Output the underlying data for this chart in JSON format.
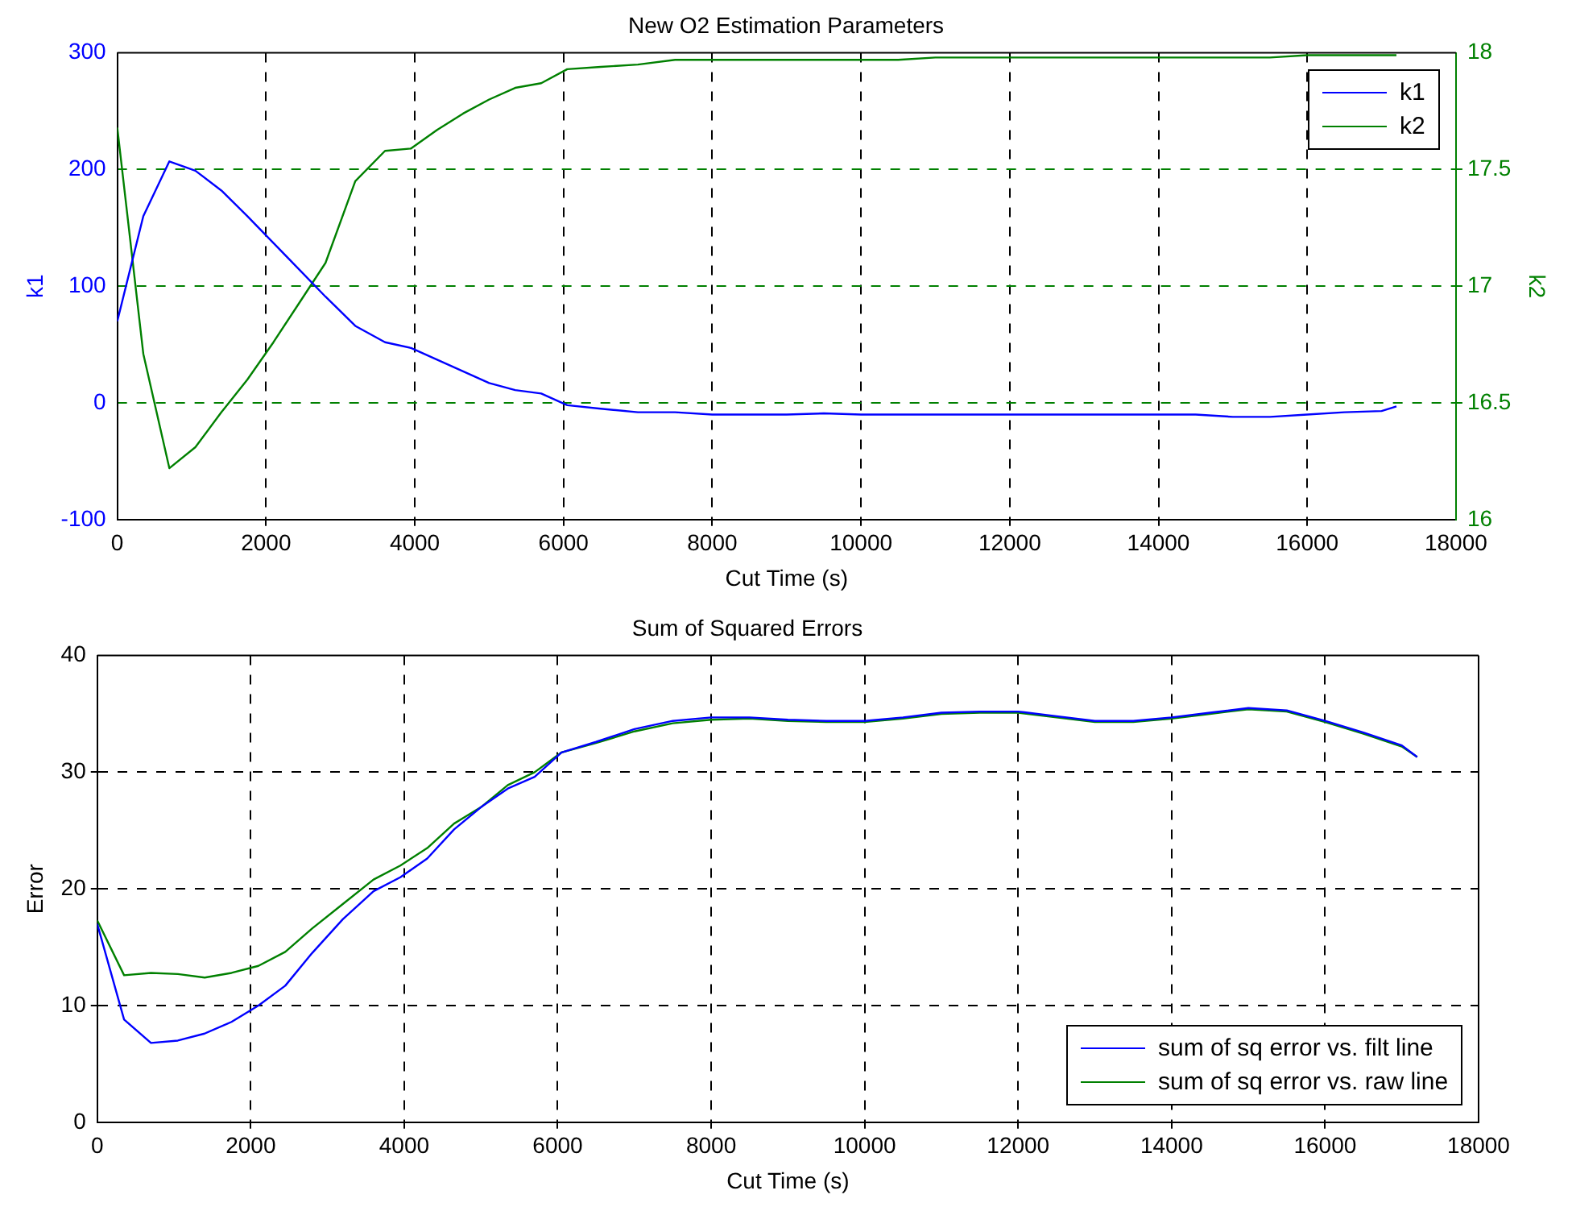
{
  "chart_data": [
    {
      "type": "line",
      "title": "New O2 Estimation Parameters",
      "xlabel": "Cut Time (s)",
      "ylabel": "k1",
      "y2label": "k2",
      "x": [
        0,
        350,
        700,
        1050,
        1400,
        1750,
        2100,
        2450,
        2800,
        3200,
        3600,
        3950,
        4300,
        4650,
        5000,
        5350,
        5700,
        6050,
        6500,
        7000,
        7500,
        8000,
        8500,
        9000,
        9500,
        10000,
        10500,
        11000,
        11500,
        12000,
        12500,
        13000,
        13500,
        14000,
        14500,
        15000,
        15500,
        16000,
        16500,
        17000,
        17200
      ],
      "series": [
        {
          "name": "k1",
          "color": "#0000ff",
          "values": [
            70,
            160,
            207,
            199,
            182,
            160,
            137,
            114,
            91,
            66,
            52,
            47,
            37,
            27,
            17,
            11,
            8,
            -2,
            -5,
            -8,
            -8,
            -10,
            -10,
            -10,
            -9,
            -10,
            -10,
            -10,
            -10,
            -10,
            -10,
            -10,
            -10,
            -10,
            -10,
            -12,
            -12,
            -10,
            -8,
            -7,
            -3
          ]
        },
        {
          "name": "k2",
          "color": "#008000",
          "axis": "y2",
          "values": [
            17.68,
            16.71,
            16.22,
            16.31,
            16.46,
            16.6,
            16.76,
            16.93,
            17.1,
            17.45,
            17.58,
            17.59,
            17.67,
            17.74,
            17.8,
            17.85,
            17.87,
            17.93,
            17.94,
            17.95,
            17.97,
            17.97,
            17.97,
            17.97,
            17.97,
            17.97,
            17.97,
            17.98,
            17.98,
            17.98,
            17.98,
            17.98,
            17.98,
            17.98,
            17.98,
            17.98,
            17.98,
            17.99,
            17.99,
            17.99,
            17.99
          ]
        }
      ],
      "xlim": [
        0,
        18000
      ],
      "xticks": [
        0,
        2000,
        4000,
        6000,
        8000,
        10000,
        12000,
        14000,
        16000,
        18000
      ],
      "ylim": [
        -100,
        300
      ],
      "yticks": [
        -100,
        0,
        100,
        200,
        300
      ],
      "y2lim": [
        16,
        18
      ],
      "y2ticks": [
        16,
        16.5,
        17,
        17.5,
        18
      ],
      "grid": true,
      "legend": "top right",
      "line_style": "solid"
    },
    {
      "type": "line",
      "title": "Sum of Squared Errors",
      "xlabel": "Cut Time (s)",
      "ylabel": "Error",
      "x": [
        0,
        350,
        700,
        1050,
        1400,
        1750,
        2100,
        2450,
        2800,
        3200,
        3600,
        3950,
        4300,
        4650,
        5000,
        5350,
        5700,
        6050,
        6500,
        7000,
        7500,
        8000,
        8500,
        9000,
        9500,
        10000,
        10500,
        11000,
        11500,
        12000,
        12500,
        13000,
        13500,
        14000,
        14500,
        15000,
        15500,
        16000,
        16500,
        17000,
        17200
      ],
      "series": [
        {
          "name": "sum of sq error vs. filt line",
          "color": "#0000ff",
          "values": [
            17,
            8.8,
            6.8,
            7,
            7.6,
            8.6,
            10,
            11.7,
            14.5,
            17.4,
            19.8,
            21,
            22.6,
            25.1,
            27,
            28.6,
            29.6,
            31.7,
            32.6,
            33.7,
            34.4,
            34.7,
            34.7,
            34.5,
            34.4,
            34.4,
            34.7,
            35.1,
            35.2,
            35.2,
            34.8,
            34.4,
            34.4,
            34.7,
            35.1,
            35.5,
            35.3,
            34.4,
            33.4,
            32.3,
            31.3
          ]
        },
        {
          "name": "sum of sq error vs. raw line",
          "color": "#008000",
          "values": [
            17.3,
            12.6,
            12.8,
            12.7,
            12.4,
            12.8,
            13.4,
            14.6,
            16.6,
            18.7,
            20.8,
            22,
            23.5,
            25.6,
            27,
            28.9,
            30,
            31.7,
            32.5,
            33.5,
            34.2,
            34.5,
            34.6,
            34.4,
            34.3,
            34.3,
            34.6,
            35,
            35.1,
            35.1,
            34.7,
            34.3,
            34.3,
            34.6,
            35,
            35.4,
            35.2,
            34.3,
            33.3,
            32.2,
            31.3
          ]
        }
      ],
      "xlim": [
        0,
        18000
      ],
      "xticks": [
        0,
        2000,
        4000,
        6000,
        8000,
        10000,
        12000,
        14000,
        16000,
        18000
      ],
      "ylim": [
        0,
        40
      ],
      "yticks": [
        0,
        10,
        20,
        30,
        40
      ],
      "grid": true,
      "legend": "bottom right",
      "line_style": "solid"
    }
  ]
}
